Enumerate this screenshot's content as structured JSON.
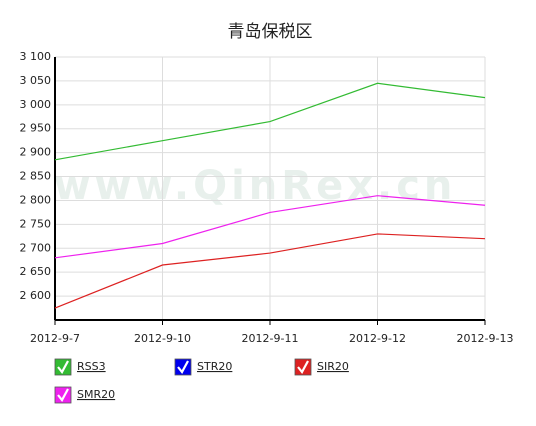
{
  "chart_data": {
    "type": "line",
    "title": "青岛保税区",
    "watermark": "www.QinRex.cn",
    "categories": [
      "2012-9-7",
      "2012-9-10",
      "2012-9-11",
      "2012-9-12",
      "2012-9-13"
    ],
    "series": [
      {
        "name": "RSS3",
        "color": "#33bb33",
        "values": [
          2885,
          2925,
          2965,
          3045,
          3015
        ]
      },
      {
        "name": "STR20",
        "color": "#0000ee",
        "values": [
          null,
          null,
          null,
          null,
          null
        ]
      },
      {
        "name": "SIR20",
        "color": "#dd2222",
        "values": [
          2575,
          2665,
          2690,
          2730,
          2720
        ]
      },
      {
        "name": "SMR20",
        "color": "#ee22ee",
        "values": [
          2680,
          2710,
          2775,
          2810,
          2790
        ]
      }
    ],
    "ylim": [
      2550,
      3100
    ],
    "yticks": [
      {
        "value": 2600,
        "label": "2 600"
      },
      {
        "value": 2650,
        "label": "2 650"
      },
      {
        "value": 2700,
        "label": "2 700"
      },
      {
        "value": 2750,
        "label": "2 750"
      },
      {
        "value": 2800,
        "label": "2 800"
      },
      {
        "value": 2850,
        "label": "2 850"
      },
      {
        "value": 2900,
        "label": "2 900"
      },
      {
        "value": 2950,
        "label": "2 950"
      },
      {
        "value": 3000,
        "label": "3 000"
      },
      {
        "value": 3050,
        "label": "3 050"
      },
      {
        "value": 3100,
        "label": "3 100"
      }
    ],
    "grid": true
  }
}
